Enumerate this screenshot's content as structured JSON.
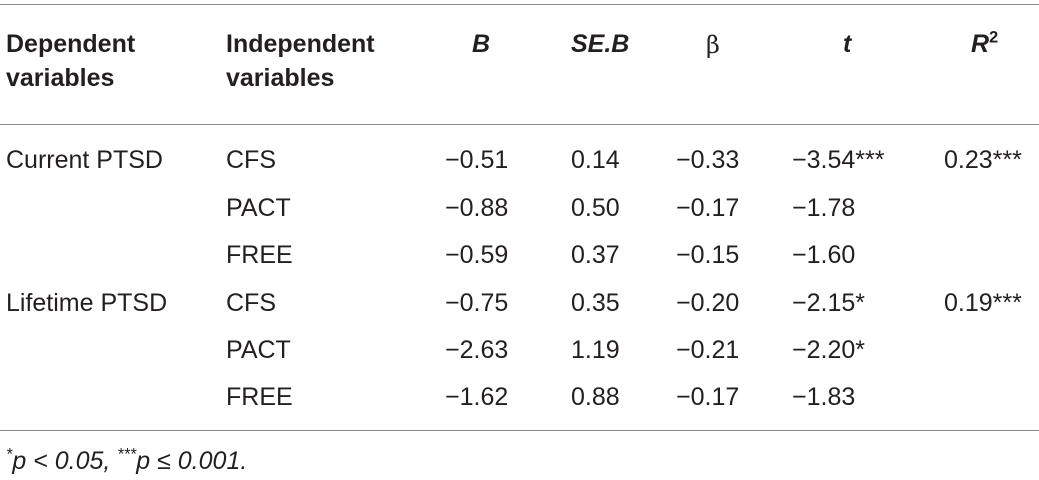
{
  "headers": {
    "dependent_line1": "Dependent",
    "dependent_line2": "variables",
    "independent_line1": "Independent",
    "independent_line2": "variables",
    "b": "B",
    "seb": "SE.B",
    "beta": "β",
    "t": "t",
    "r2_base": "R",
    "r2_sup": "2"
  },
  "rows": [
    {
      "dependent": "Current PTSD",
      "independent": "CFS",
      "b": "−0.51",
      "seb": "0.14",
      "beta": "−0.33",
      "t": "−3.54***",
      "r2": "0.23***"
    },
    {
      "dependent": "",
      "independent": "PACT",
      "b": "−0.88",
      "seb": "0.50",
      "beta": "−0.17",
      "t": "−1.78",
      "r2": ""
    },
    {
      "dependent": "",
      "independent": "FREE",
      "b": "−0.59",
      "seb": "0.37",
      "beta": "−0.15",
      "t": "−1.60",
      "r2": ""
    },
    {
      "dependent": "Lifetime PTSD",
      "independent": "CFS",
      "b": "−0.75",
      "seb": "0.35",
      "beta": "−0.20",
      "t": "−2.15*",
      "r2": "0.19***"
    },
    {
      "dependent": "",
      "independent": "PACT",
      "b": "−2.63",
      "seb": "1.19",
      "beta": "−0.21",
      "t": "−2.20*",
      "r2": ""
    },
    {
      "dependent": "",
      "independent": "FREE",
      "b": "−1.62",
      "seb": "0.88",
      "beta": "−0.17",
      "t": "−1.83",
      "r2": ""
    }
  ],
  "footnote": {
    "sup1": "*",
    "text1": "p < 0.05, ",
    "sup2": "***",
    "text2": "p ≤ 0.001."
  }
}
